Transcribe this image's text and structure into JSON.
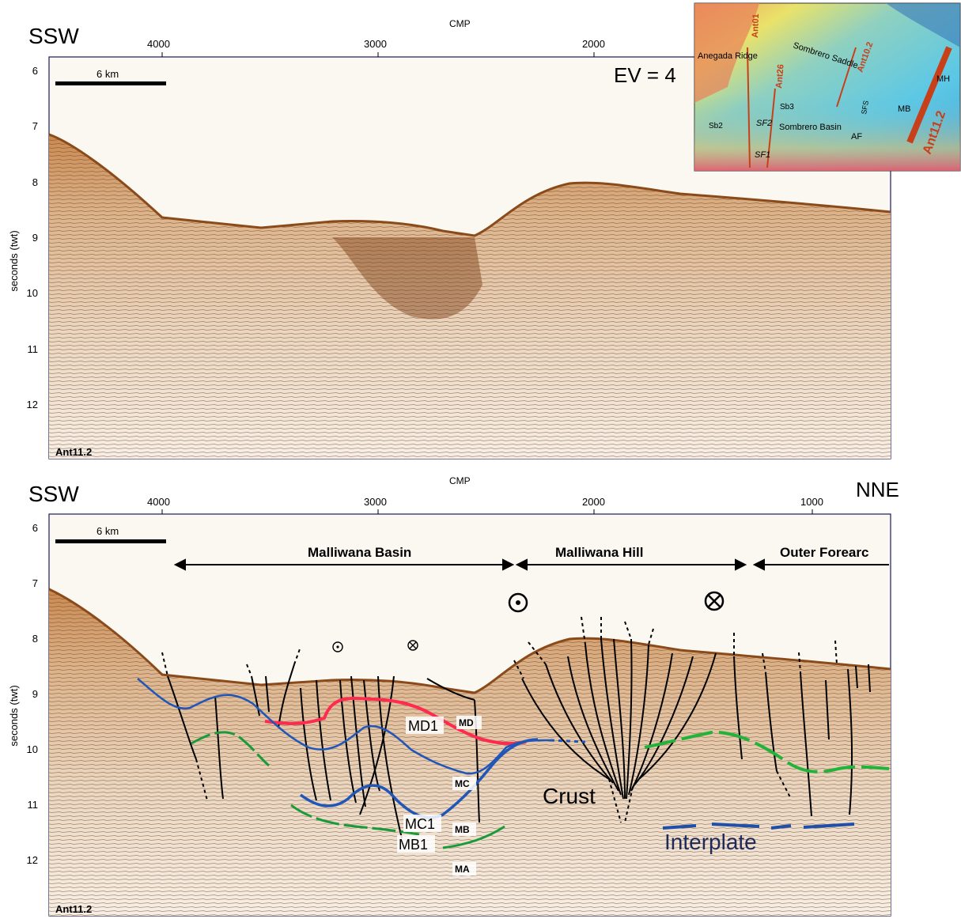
{
  "top_panel": {
    "direction_left": "SSW",
    "axis_title": "CMP",
    "cmp_ticks": [
      "4000",
      "3000",
      "2000"
    ],
    "y_axis_label": "seconds (twt)",
    "time_ticks": [
      "6",
      "7",
      "8",
      "9",
      "10",
      "11",
      "12"
    ],
    "scale_bar_label": "6 km",
    "exaggeration": "EV = 4",
    "line_label": "Ant11.2"
  },
  "inset_map": {
    "labels": {
      "anegada_ridge": "Anegada Ridge",
      "ant01": "Ant01",
      "ant26": "Ant26",
      "ant10_2": "Ant10.2",
      "ant11_2": "Ant11.2",
      "sombrero_saddle": "Sombrero Saddle",
      "sfs": "SFS",
      "sb3": "Sb3",
      "sb2": "Sb2",
      "sf2": "SF2",
      "sf1": "SF1",
      "sombrero_basin": "Sombrero Basin",
      "af": "AF",
      "mb": "MB",
      "mh": "MH"
    }
  },
  "bottom_panel": {
    "direction_left": "SSW",
    "direction_right": "NNE",
    "axis_title": "CMP",
    "cmp_ticks": [
      "4000",
      "3000",
      "2000",
      "1000"
    ],
    "y_axis_label": "seconds (twt)",
    "time_ticks": [
      "6",
      "7",
      "8",
      "9",
      "10",
      "11",
      "12"
    ],
    "scale_bar_label": "6 km",
    "line_label": "Ant11.2",
    "regions": [
      "Malliwana Basin",
      "Malliwana Hill",
      "Outer Forearc"
    ],
    "horizon_labels": {
      "md1": "MD1",
      "md": "MD",
      "mc": "MC",
      "mc1": "MC1",
      "mb": "MB",
      "mb1": "MB1",
      "ma": "MA",
      "crust": "Crust",
      "interplate": "Interplate"
    }
  },
  "colors": {
    "md_horizon": "#ff2a4f",
    "mc_horizon": "#2056b8",
    "mb_horizon": "#1a9a3a",
    "outer_green": "#22b33a",
    "interplate": "#1f4fa8",
    "seafloor": "#b8651f",
    "track_line": "#c8401a"
  }
}
